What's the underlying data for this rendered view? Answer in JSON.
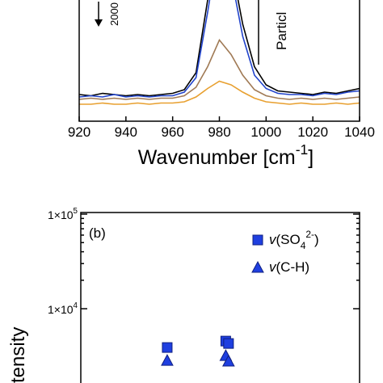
{
  "chart_data": [
    {
      "type": "line",
      "xlabel": "Wavenumber [cm^{-1}]",
      "annotations": [
        "2000",
        "Particl"
      ],
      "x": [
        920,
        925,
        930,
        935,
        940,
        945,
        950,
        955,
        960,
        965,
        970,
        975,
        980,
        985,
        990,
        995,
        1000,
        1005,
        1010,
        1015,
        1020,
        1025,
        1030,
        1035,
        1040
      ],
      "series": [
        {
          "color": "#000000",
          "values": [
            22,
            21,
            23,
            22,
            21,
            22,
            21,
            22,
            23,
            26,
            40,
            100,
            160,
            130,
            80,
            45,
            30,
            25,
            24,
            23,
            22,
            24,
            23,
            25,
            27
          ]
        },
        {
          "color": "#2244cc",
          "values": [
            20,
            21,
            20,
            22,
            20,
            21,
            20,
            21,
            21,
            24,
            36,
            90,
            150,
            120,
            70,
            38,
            27,
            23,
            22,
            22,
            21,
            23,
            22,
            24,
            25
          ]
        },
        {
          "color": "#a07a55",
          "values": [
            18,
            19,
            18,
            19,
            18,
            19,
            18,
            19,
            19,
            21,
            28,
            45,
            67,
            55,
            38,
            26,
            21,
            19,
            18,
            19,
            18,
            19,
            18,
            19,
            20
          ]
        },
        {
          "color": "#e8a030",
          "values": [
            14,
            14,
            15,
            14,
            14,
            15,
            14,
            15,
            15,
            16,
            20,
            27,
            33,
            30,
            24,
            19,
            16,
            15,
            14,
            15,
            14,
            14,
            15,
            14,
            15
          ]
        }
      ],
      "xlim": [
        920,
        1040
      ],
      "xticks": [
        920,
        940,
        960,
        980,
        1000,
        1020,
        1040
      ],
      "ylim": [
        0,
        100
      ]
    },
    {
      "type": "scatter",
      "label": "(b)",
      "ylabel": "tensity",
      "log_y": true,
      "xlim": [
        0,
        10
      ],
      "ylim": [
        1640,
        104000
      ],
      "yticks": [
        {
          "value": 10000,
          "label": "1×10^{4}"
        },
        {
          "value": 100000,
          "label": "1×10^{5}"
        }
      ],
      "yminorticks": [
        20000,
        30000,
        40000,
        50000,
        60000,
        70000,
        80000,
        90000
      ],
      "series": [
        {
          "name": "*{v}(SO_{4}^{2-})",
          "marker": "square",
          "color": "#1f3fe0",
          "x": [
            3.1,
            5.2,
            5.3
          ],
          "values": [
            3890,
            4550,
            4290
          ]
        },
        {
          "name": "*{v}(C-H)",
          "marker": "triangle",
          "color": "#1f3fe0",
          "x": [
            3.1,
            5.2,
            5.3
          ],
          "values": [
            2840,
            3190,
            2790
          ]
        }
      ]
    }
  ]
}
